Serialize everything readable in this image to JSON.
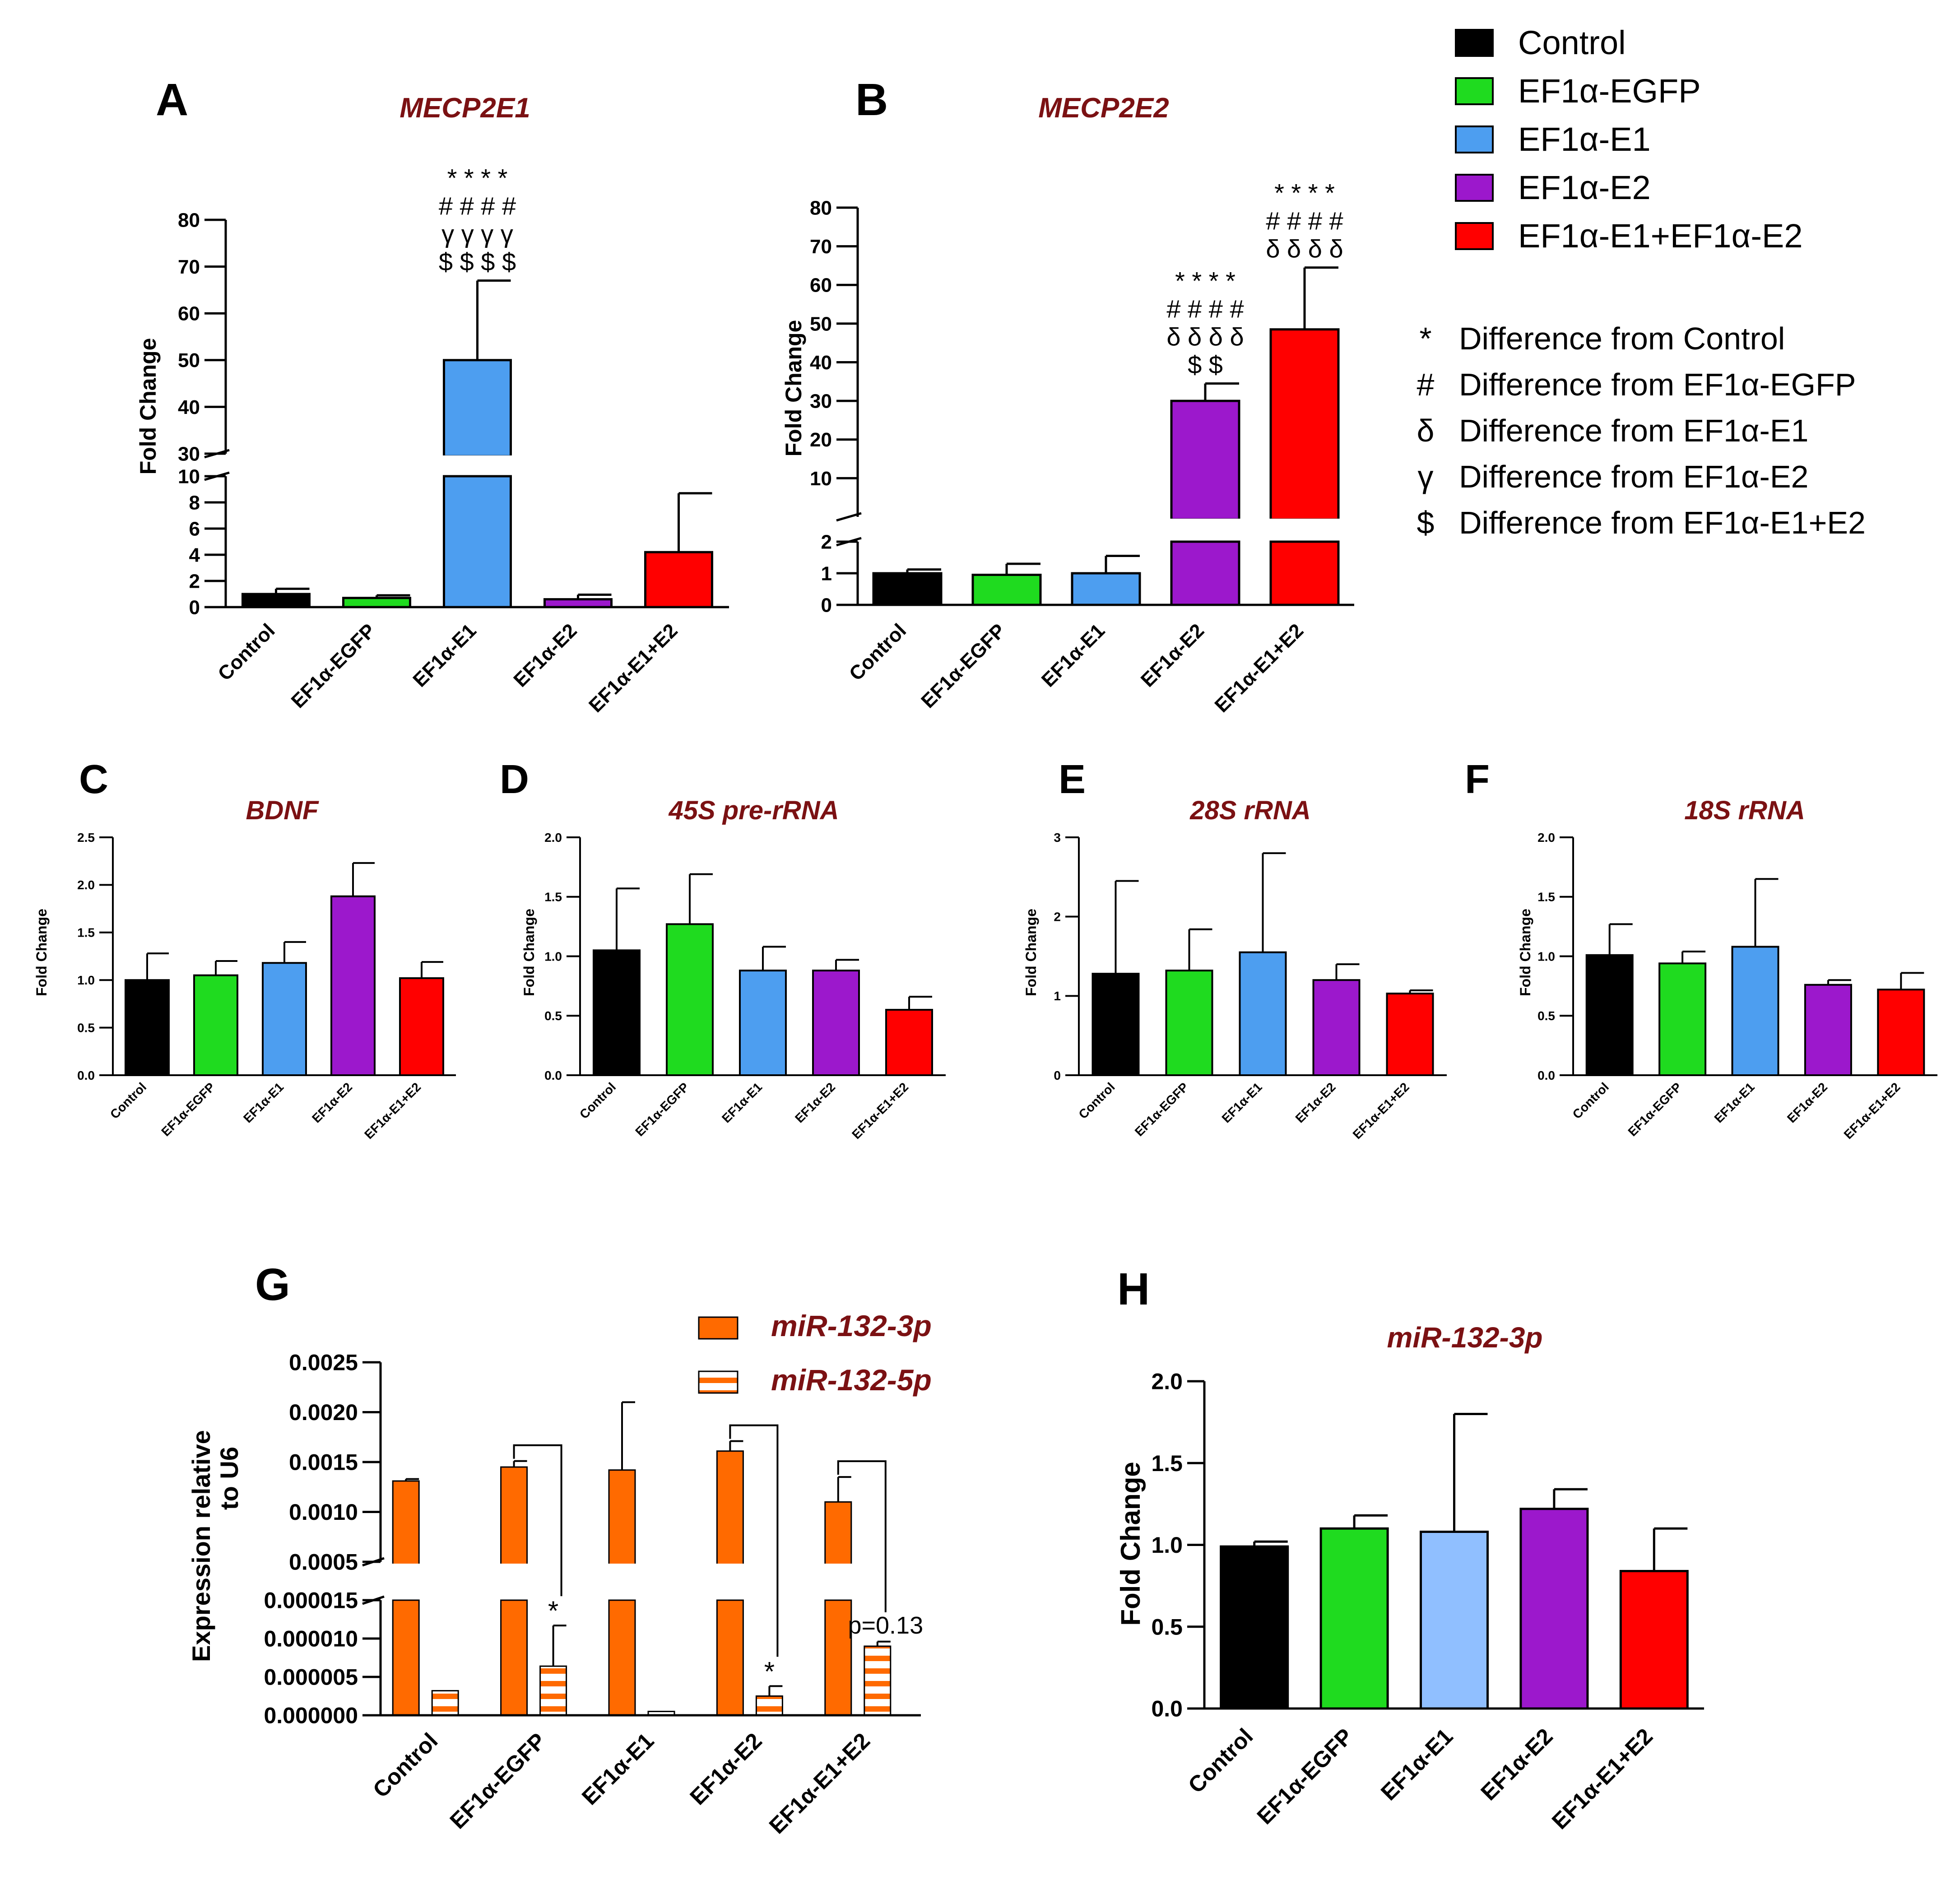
{
  "legend": {
    "items": [
      {
        "label": "Control",
        "color": "#000000"
      },
      {
        "label": "EF1α-EGFP",
        "color": "#1fdb1f"
      },
      {
        "label": "EF1α-E1",
        "color": "#4d9ef0"
      },
      {
        "label": "EF1α-E2",
        "color": "#9c18cc"
      },
      {
        "label": "EF1α-E1+EF1α-E2",
        "color": "#ff0000"
      }
    ],
    "symbols": [
      {
        "symbol": "*",
        "text": "Difference from Control"
      },
      {
        "symbol": "#",
        "text": "Difference from EF1α-EGFP"
      },
      {
        "symbol": "δ",
        "text": "Difference from EF1α-E1"
      },
      {
        "symbol": "γ",
        "text": "Difference from EF1α-E2"
      },
      {
        "symbol": "$",
        "text": "Difference from EF1α-E1+E2"
      }
    ]
  },
  "chart_data": [
    {
      "id": "A",
      "panel_label": "A",
      "type": "bar",
      "title": "MECP2E1",
      "ylabel": "Fold Change",
      "categories": [
        "Control",
        "EF1α-EGFP",
        "EF1α-E1",
        "EF1α-E2",
        "EF1α-E1+E2"
      ],
      "colors": [
        "#000000",
        "#1fdb1f",
        "#4d9ef0",
        "#9c18cc",
        "#ff0000"
      ],
      "values": [
        1.0,
        0.7,
        50,
        0.6,
        4.2
      ],
      "errors": [
        0.4,
        0.2,
        17,
        0.35,
        4.5
      ],
      "ylim_lower": [
        0,
        10
      ],
      "ylim_upper": [
        30,
        80
      ],
      "yticks_lower": [
        "0",
        "2",
        "4",
        "6",
        "8",
        "10"
      ],
      "yticks_upper": [
        "30",
        "40",
        "50",
        "60",
        "70",
        "80"
      ],
      "annotations": [
        {
          "bar": 2,
          "lines": [
            "* * * *",
            "# # # #",
            "γ γ γ γ",
            "$ $ $ $"
          ]
        }
      ]
    },
    {
      "id": "B",
      "panel_label": "B",
      "type": "bar",
      "title": "MECP2E2",
      "ylabel": "Fold Change",
      "categories": [
        "Control",
        "EF1α-EGFP",
        "EF1α-E1",
        "EF1α-E2",
        "EF1α-E1+E2"
      ],
      "colors": [
        "#000000",
        "#1fdb1f",
        "#4d9ef0",
        "#9c18cc",
        "#ff0000"
      ],
      "values": [
        1.0,
        0.95,
        1.0,
        30,
        48.5
      ],
      "errors": [
        0.12,
        0.35,
        0.55,
        4.5,
        16
      ],
      "ylim_lower": [
        0,
        2
      ],
      "ylim_upper": [
        3,
        80
      ],
      "yticks_lower": [
        "0",
        "1",
        "2"
      ],
      "yticks_upper": [
        "10",
        "20",
        "30",
        "40",
        "50",
        "60",
        "70",
        "80"
      ],
      "annotations": [
        {
          "bar": 3,
          "lines": [
            "* * * *",
            "# # # #",
            "δ δ δ δ",
            "$ $"
          ]
        },
        {
          "bar": 4,
          "lines": [
            "* * * *",
            "# # # #",
            "δ δ δ δ"
          ]
        }
      ]
    },
    {
      "id": "C",
      "panel_label": "C",
      "type": "bar",
      "title": "BDNF",
      "ylabel": "Fold Change",
      "categories": [
        "Control",
        "EF1α-EGFP",
        "EF1α-E1",
        "EF1α-E2",
        "EF1α-E1+E2"
      ],
      "colors": [
        "#000000",
        "#1fdb1f",
        "#4d9ef0",
        "#9c18cc",
        "#ff0000"
      ],
      "values": [
        1.0,
        1.05,
        1.18,
        1.88,
        1.02
      ],
      "errors": [
        0.28,
        0.15,
        0.22,
        0.35,
        0.17
      ],
      "ylim": [
        0,
        2.5
      ],
      "yticks": [
        "0.0",
        "0.5",
        "1.0",
        "1.5",
        "2.0",
        "2.5"
      ]
    },
    {
      "id": "D",
      "panel_label": "D",
      "type": "bar",
      "title": "45S pre-rRNA",
      "ylabel": "Fold Change",
      "categories": [
        "Control",
        "EF1α-EGFP",
        "EF1α-E1",
        "EF1α-E2",
        "EF1α-E1+E2"
      ],
      "colors": [
        "#000000",
        "#1fdb1f",
        "#4d9ef0",
        "#9c18cc",
        "#ff0000"
      ],
      "values": [
        1.05,
        1.27,
        0.88,
        0.88,
        0.55
      ],
      "errors": [
        0.52,
        0.42,
        0.2,
        0.09,
        0.11
      ],
      "ylim": [
        0,
        2.0
      ],
      "yticks": [
        "0.0",
        "0.5",
        "1.0",
        "1.5",
        "2.0"
      ]
    },
    {
      "id": "E",
      "panel_label": "E",
      "type": "bar",
      "title": "28S rRNA",
      "ylabel": "Fold Change",
      "categories": [
        "Control",
        "EF1α-EGFP",
        "EF1α-E1",
        "EF1α-E2",
        "EF1α-E1+E2"
      ],
      "colors": [
        "#000000",
        "#1fdb1f",
        "#4d9ef0",
        "#9c18cc",
        "#ff0000"
      ],
      "values": [
        1.28,
        1.32,
        1.55,
        1.2,
        1.03
      ],
      "errors": [
        1.17,
        0.52,
        1.25,
        0.2,
        0.04
      ],
      "ylim": [
        0,
        3
      ],
      "yticks": [
        "0",
        "1",
        "2",
        "3"
      ]
    },
    {
      "id": "F",
      "panel_label": "F",
      "type": "bar",
      "title": "18S rRNA",
      "ylabel": "Fold Change",
      "categories": [
        "Control",
        "EF1α-EGFP",
        "EF1α-E1",
        "EF1α-E2",
        "EF1α-E1+E2"
      ],
      "colors": [
        "#000000",
        "#1fdb1f",
        "#4d9ef0",
        "#9c18cc",
        "#ff0000"
      ],
      "values": [
        1.01,
        0.94,
        1.08,
        0.76,
        0.72
      ],
      "errors": [
        0.26,
        0.1,
        0.57,
        0.04,
        0.14
      ],
      "ylim": [
        0,
        2.0
      ],
      "yticks": [
        "0.0",
        "0.5",
        "1.0",
        "1.5",
        "2.0"
      ]
    },
    {
      "id": "G",
      "panel_label": "G",
      "type": "bar",
      "title": "",
      "ylabel_line1": "Expression relative",
      "ylabel_line2": "to U6",
      "categories": [
        "Control",
        "EF1α-EGFP",
        "EF1α-E1",
        "EF1α-E2",
        "EF1α-E1+E2"
      ],
      "series": [
        {
          "name": "miR-132-3p",
          "color": "#ff6a00",
          "pattern": "solid",
          "values": [
            0.00131,
            0.00145,
            0.00142,
            0.00161,
            0.0011
          ],
          "errors": [
            2e-05,
            6e-05,
            0.00068,
            0.0001,
            0.00025
          ]
        },
        {
          "name": "miR-132-5p",
          "color": "#ff6a00",
          "pattern": "striped",
          "values": [
            3.2e-06,
            6.4e-06,
            5e-07,
            2.5e-06,
            9e-06
          ],
          "errors": [
            0.0,
            5.3e-06,
            0.0,
            1.3e-06,
            6e-07
          ]
        }
      ],
      "ylim_lower": [
        0,
        1.5e-05
      ],
      "ylim_upper": [
        0.0005,
        0.0025
      ],
      "yticks_lower": [
        "0.000000",
        "0.000005",
        "0.000010",
        "0.000015"
      ],
      "yticks_upper": [
        "0.0005",
        "0.0010",
        "0.0015",
        "0.0020",
        "0.0025"
      ],
      "annotations": [
        {
          "bar": 1,
          "text": "*"
        },
        {
          "bar": 3,
          "text": "*"
        },
        {
          "bar": 4,
          "text": "p=0.13"
        }
      ]
    },
    {
      "id": "H",
      "panel_label": "H",
      "type": "bar",
      "title": "miR-132-3p",
      "ylabel": "Fold Change",
      "categories": [
        "Control",
        "EF1α-EGFP",
        "EF1α-E1",
        "EF1α-E2",
        "EF1α-E1+E2"
      ],
      "colors": [
        "#000000",
        "#1fdb1f",
        "#90bfff",
        "#9c18cc",
        "#ff0000"
      ],
      "values": [
        0.99,
        1.1,
        1.08,
        1.22,
        0.84
      ],
      "errors": [
        0.03,
        0.08,
        0.72,
        0.12,
        0.26
      ],
      "ylim": [
        0,
        2.0
      ],
      "yticks": [
        "0.0",
        "0.5",
        "1.0",
        "1.5",
        "2.0"
      ]
    }
  ]
}
